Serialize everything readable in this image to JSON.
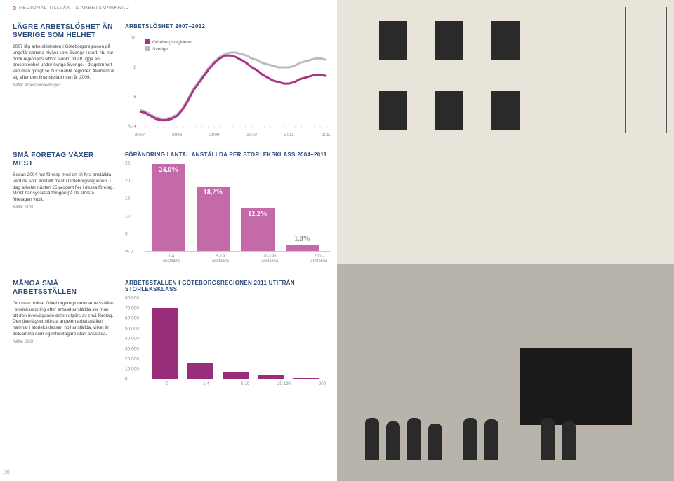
{
  "breadcrumb": "REGIONAL TILLVÄXT & ARBETSMARKNAD",
  "page_number": "20",
  "section1": {
    "heading": "LÄGRE ARBETSLÖSHET ÄN SVERIGE SOM HELHET",
    "body": "2007 låg arbetslösheten i Göteborgsregionen på ungefär samma nivåer som Sverige i stort. Nu har dock regionens siffror sjunkit till att ligga en procentenhet under övriga Sverige. I diagrammet kan man tydligt se hur snabbt regionen återhämtat sig efter den finansiella krisen år 2009.",
    "source": "Källa: Arbetsförmedlingen",
    "chart": {
      "title": "ARBETSLÖSHET 2007–2012",
      "type": "line",
      "legend": [
        {
          "label": "Göteborgsregionen",
          "color": "#aa3388"
        },
        {
          "label": "Sverige",
          "color": "#bbbbbb"
        }
      ],
      "ylim": [
        4,
        10
      ],
      "yticks": [
        4,
        6,
        8,
        10
      ],
      "yunit": "%",
      "xlabels": [
        "2007",
        "2008",
        "2009",
        "2010",
        "2011",
        "2012"
      ],
      "series": [
        {
          "color": "#bbbbbb",
          "width": 3,
          "points": [
            5.1,
            5.0,
            4.8,
            4.6,
            4.5,
            4.5,
            4.6,
            4.8,
            5.2,
            5.8,
            6.5,
            7.0,
            7.5,
            8.0,
            8.4,
            8.7,
            8.9,
            9.0,
            9.0,
            8.9,
            8.8,
            8.6,
            8.5,
            8.3,
            8.2,
            8.1,
            8.0,
            8.0,
            8.0,
            8.1,
            8.3,
            8.4,
            8.5,
            8.6,
            8.6,
            8.5
          ]
        },
        {
          "color": "#aa3388",
          "width": 3,
          "points": [
            5.0,
            4.9,
            4.7,
            4.5,
            4.4,
            4.4,
            4.5,
            4.7,
            5.1,
            5.7,
            6.4,
            6.9,
            7.4,
            7.9,
            8.3,
            8.6,
            8.8,
            8.8,
            8.7,
            8.5,
            8.3,
            8.0,
            7.8,
            7.5,
            7.3,
            7.1,
            7.0,
            6.9,
            6.9,
            7.0,
            7.2,
            7.3,
            7.4,
            7.5,
            7.5,
            7.4
          ]
        }
      ]
    }
  },
  "section2": {
    "heading": "SMÅ FÖRETAG VÄXER MEST",
    "body": "Sedan 2004 har företag med en till fyra anställda varit de som anställt mest i Göteborgsregionen. I dag arbetar nästan 25 procent fler i dessa företag. Minst har sysselsättningen på de största företagen vuxit.",
    "source": "Källa: SCB",
    "chart": {
      "title": "FÖRÄNDRING I ANTAL ANSTÄLLDA PER STORLEKSKLASS 2004–2011",
      "type": "bar",
      "ylim": [
        0,
        25
      ],
      "yticks": [
        0,
        5,
        10,
        15,
        20,
        25
      ],
      "yunit": "%",
      "categories": [
        "1-4\nanställda",
        "5-19\nanställda",
        "20-199\nanställda",
        "200 -\nanställda"
      ],
      "values": [
        24.6,
        18.2,
        12.2,
        1.8
      ],
      "value_labels": [
        "24,6%",
        "18,2%",
        "12,2%",
        "1,8%"
      ],
      "bar_color": "#c56aa8",
      "bar_width_pct": 18,
      "bar_gap_pct": 24
    }
  },
  "section3": {
    "heading": "MÅNGA SMÅ ARBETSSTÄLLEN",
    "body": "Om man ordnar Göteborgsregionens arbetsställen i storleksordning efter antalet anställda ser man att den övervägande delen utgörs av små företag. Den överlägset största andelen arbetsställen hamnar i storleksklassen noll anställda, vilket är detsamma som egenföretagare utan anställda.",
    "source": "Källa: SCB",
    "chart": {
      "title": "ARBETSSTÄLLEN I GÖTEBORGSREGIONEN 2011 UTIFRÅN STORLEKSKLASS",
      "type": "bar",
      "ylim": [
        0,
        80000
      ],
      "yticks": [
        0,
        10000,
        20000,
        30000,
        40000,
        50000,
        60000,
        70000,
        80000
      ],
      "ytick_labels": [
        "0",
        "10 000",
        "20 000",
        "30 000",
        "40 000",
        "50 000",
        "60 000",
        "70 000",
        "80 000"
      ],
      "categories": [
        "0",
        "1-4",
        "5-19",
        "20-199",
        "200-"
      ],
      "values": [
        70000,
        15000,
        7000,
        3500,
        400
      ],
      "bar_color": "#9a2d7a",
      "bar_width_pct": 14,
      "bar_gap_pct": 19
    }
  }
}
